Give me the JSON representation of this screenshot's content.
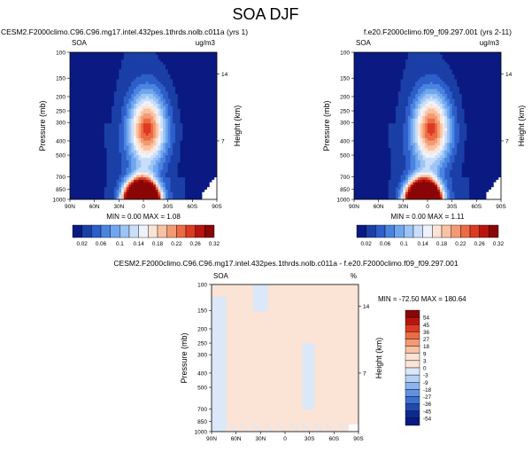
{
  "figure": {
    "title": "SOA DJF"
  },
  "panels": [
    {
      "title": "CESM2.F2000climo.C96.C96.mg17.intel.432pes.1thrds.nolb.c011a (yrs 1)",
      "field_label": "SOA",
      "units": "ug/m3",
      "stats": "MIN =  0.00  MAX =  1.08"
    },
    {
      "title": "f.e20.F2000climo.f09_f09.297.001 (yrs 2-11)",
      "field_label": "SOA",
      "units": "ug/m3",
      "stats": "MIN =  0.00  MAX =  1.11"
    },
    {
      "title": "CESM2.F2000climo.C96.C96.mg17.intel.432pes.1thrds.nolb.c011a - f.e20.F2000climo.f09_f09.297.001",
      "field_label": "SOA",
      "units": "%",
      "stats": "MIN = -72.50  MAX = 180.64"
    }
  ],
  "chart_data": [
    {
      "type": "heatmap",
      "panel": 0,
      "title": "CESM2.F2000climo.C96.C96.mg17.intel.432pes.1thrds.nolb.c011a (yrs 1)",
      "ylabel": "Pressure (mb)",
      "y2label": "Height (km)",
      "x_ticks": [
        "90N",
        "60N",
        "30N",
        "0",
        "30S",
        "60S",
        "90S"
      ],
      "x_values": [
        90,
        60,
        30,
        0,
        -30,
        -60,
        -90
      ],
      "y_ticks": [
        "100",
        "150",
        "200",
        "250",
        "300",
        "400",
        "500",
        "700",
        "850",
        "1000"
      ],
      "y_values": [
        100,
        150,
        200,
        250,
        300,
        400,
        500,
        700,
        850,
        1000
      ],
      "y_scale": "log",
      "y_reversed": true,
      "y2_ticks": [
        "14",
        "7"
      ],
      "y2_values_mb": [
        140,
        400
      ],
      "min": 0.0,
      "max": 1.08,
      "levels": [
        0.02,
        0.06,
        0.1,
        0.14,
        0.18,
        0.22,
        0.26,
        0.32
      ],
      "peak_lat": 0,
      "peak_p": 950
    },
    {
      "type": "heatmap",
      "panel": 1,
      "title": "f.e20.F2000climo.f09_f09.297.001 (yrs 2-11)",
      "ylabel": "Pressure (mb)",
      "y2label": "Height (km)",
      "x_ticks": [
        "90N",
        "60N",
        "30N",
        "0",
        "30S",
        "60S",
        "90S"
      ],
      "x_values": [
        90,
        60,
        30,
        0,
        -30,
        -60,
        -90
      ],
      "y_ticks": [
        "100",
        "150",
        "200",
        "250",
        "300",
        "400",
        "500",
        "700",
        "850",
        "1000"
      ],
      "y_values": [
        100,
        150,
        200,
        250,
        300,
        400,
        500,
        700,
        850,
        1000
      ],
      "y_scale": "log",
      "y_reversed": true,
      "y2_ticks": [
        "14",
        "7"
      ],
      "y2_values_mb": [
        140,
        400
      ],
      "min": 0.0,
      "max": 1.11,
      "levels": [
        0.02,
        0.06,
        0.1,
        0.14,
        0.18,
        0.22,
        0.26,
        0.32
      ],
      "peak_lat": 0,
      "peak_p": 950
    },
    {
      "type": "heatmap",
      "panel": 2,
      "title": "CESM2.F2000climo.C96.C96.mg17.intel.432pes.1thrds.nolb.c011a - f.e20.F2000climo.f09_f09.297.001",
      "ylabel": "Pressure (mb)",
      "y2label": "Height (km)",
      "x_ticks": [
        "90N",
        "60N",
        "30N",
        "0",
        "30S",
        "60S",
        "90S"
      ],
      "x_values": [
        90,
        60,
        30,
        0,
        -30,
        -60,
        -90
      ],
      "y_ticks": [
        "100",
        "150",
        "200",
        "250",
        "300",
        "400",
        "500",
        "700",
        "850",
        "1000"
      ],
      "y_values": [
        100,
        150,
        200,
        250,
        300,
        400,
        500,
        700,
        850,
        1000
      ],
      "y_scale": "log",
      "y_reversed": true,
      "y2_ticks": [
        "14",
        "7"
      ],
      "y2_values_mb": [
        140,
        400
      ],
      "min": -72.5,
      "max": 180.64,
      "levels": [
        -54,
        -45,
        -36,
        -27,
        -18,
        -9,
        -3,
        0,
        3,
        9,
        18,
        27,
        36,
        45,
        54
      ]
    }
  ],
  "colorbars": {
    "seq": {
      "labels": [
        "0.02",
        "0.06",
        "0.1",
        "0.14",
        "0.18",
        "0.22",
        "0.26",
        "0.32"
      ],
      "colors": [
        "#0a1a82",
        "#1a3fa6",
        "#2d5ec9",
        "#4a84e0",
        "#6fa6ef",
        "#9cc4f5",
        "#c9defa",
        "#eef3fb",
        "#fbe4d6",
        "#f8c2a3",
        "#f49a73",
        "#ec6b45",
        "#dd3a22",
        "#b8150f",
        "#8a0606"
      ]
    },
    "diff": {
      "labels": [
        "54",
        "45",
        "36",
        "27",
        "18",
        "9",
        "3",
        "0",
        "-3",
        "-9",
        "-18",
        "-27",
        "-36",
        "-45",
        "-54"
      ],
      "colors": [
        "#8a0606",
        "#b8150f",
        "#dd3a22",
        "#ec6b45",
        "#f49a73",
        "#f8c2a3",
        "#fbe4d6",
        "#fbe4d6",
        "#dbe8f9",
        "#b7d0f4",
        "#8db4ee",
        "#6192e2",
        "#3c6fd2",
        "#2049b0",
        "#0f2a8e",
        "#0a1a82"
      ]
    },
    "background_diff": "#fbe4d6",
    "pale_blue": "#dbe8f9"
  }
}
